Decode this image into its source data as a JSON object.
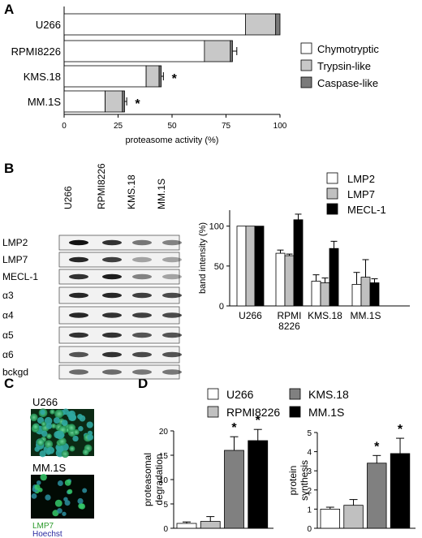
{
  "panel_labels": [
    "A",
    "B",
    "C",
    "D"
  ],
  "legend_A": [
    {
      "label": "Chymotryptic",
      "color": "#ffffff"
    },
    {
      "label": "Trypsin-like",
      "color": "#c8c8c8"
    },
    {
      "label": "Caspase-like",
      "color": "#7a7a7a"
    }
  ],
  "legend_B": [
    {
      "label": "LMP2",
      "color": "#ffffff"
    },
    {
      "label": "LMP7",
      "color": "#c0c0c0"
    },
    {
      "label": "MECL-1",
      "color": "#000000"
    }
  ],
  "legend_D": [
    {
      "label": "U266",
      "color": "#ffffff"
    },
    {
      "label": "RPMI8226",
      "color": "#c0c0c0"
    },
    {
      "label": "KMS.18",
      "color": "#808080"
    },
    {
      "label": "MM.1S",
      "color": "#000000"
    }
  ],
  "blot": {
    "lanes": [
      "U266",
      "RPMI8226",
      "KMS.18",
      "MM.1S"
    ],
    "rows": [
      "LMP2",
      "LMP7",
      "MECL-1",
      "α3",
      "α4",
      "α5",
      "α6",
      "bckgd"
    ]
  },
  "microscopy": {
    "labels": [
      "U266",
      "MM.1S"
    ],
    "stain_labels": [
      {
        "text": "LMP7",
        "color": "#2a9a2a"
      },
      {
        "text": "Hoechst",
        "color": "#2a2aa0"
      }
    ]
  },
  "chart_data": [
    {
      "panel": "A",
      "type": "bar",
      "orientation": "horizontal",
      "stacked": true,
      "categories": [
        "U266",
        "RPMI8226",
        "KMS.18",
        "MM.1S"
      ],
      "series": [
        {
          "name": "Chymotryptic",
          "values": [
            84,
            65,
            38,
            19
          ]
        },
        {
          "name": "Trypsin-like",
          "values": [
            14,
            12,
            6,
            8
          ]
        },
        {
          "name": "Caspase-like",
          "values": [
            2,
            1,
            1,
            1
          ]
        }
      ],
      "errors": [
        0,
        2,
        1,
        1
      ],
      "significance": [
        "",
        "",
        "*",
        "*"
      ],
      "xlabel": "proteasome activity (%)",
      "xlim": [
        0,
        100
      ],
      "xticks": [
        0,
        25,
        50,
        75,
        100
      ]
    },
    {
      "panel": "B",
      "type": "bar",
      "categories": [
        [
          "U266"
        ],
        [
          "RPMI",
          "8226"
        ],
        [
          "KMS.18"
        ],
        [
          "MM.1S"
        ]
      ],
      "series": [
        {
          "name": "LMP2",
          "values": [
            100,
            66,
            31,
            27
          ],
          "errors": [
            0,
            4,
            8,
            15
          ]
        },
        {
          "name": "LMP7",
          "values": [
            100,
            63,
            29,
            36
          ],
          "errors": [
            0,
            2,
            6,
            22
          ]
        },
        {
          "name": "MECL-1",
          "values": [
            100,
            108,
            72,
            29
          ],
          "errors": [
            0,
            7,
            9,
            5
          ]
        }
      ],
      "ylabel": "band intensity (%)",
      "ylim": [
        0,
        120
      ],
      "yticks": [
        0,
        50,
        100
      ]
    },
    {
      "panel": "D-left",
      "type": "bar",
      "categories": [
        "U266",
        "RPMI8226",
        "KMS.18",
        "MM.1S"
      ],
      "series": [
        {
          "name": "proteasomal degradation",
          "values": [
            1.0,
            1.4,
            16.0,
            18.0
          ],
          "errors": [
            0.3,
            1.0,
            2.8,
            2.3
          ]
        }
      ],
      "significance": [
        "",
        "",
        "*",
        "*"
      ],
      "ylabel": "proteasomal degradation",
      "ylim": [
        0,
        20
      ],
      "yticks": [
        0,
        5,
        10,
        15,
        20
      ]
    },
    {
      "panel": "D-right",
      "type": "bar",
      "categories": [
        "U266",
        "RPMI8226",
        "KMS.18",
        "MM.1S"
      ],
      "series": [
        {
          "name": "protein synthesis",
          "values": [
            1.0,
            1.2,
            3.4,
            3.9
          ],
          "errors": [
            0.1,
            0.3,
            0.4,
            0.8
          ]
        }
      ],
      "significance": [
        "",
        "",
        "*",
        "*"
      ],
      "ylabel": "protein synthesis",
      "ylim": [
        0,
        5
      ],
      "yticks": [
        0,
        1,
        2,
        3,
        4,
        5
      ]
    }
  ]
}
